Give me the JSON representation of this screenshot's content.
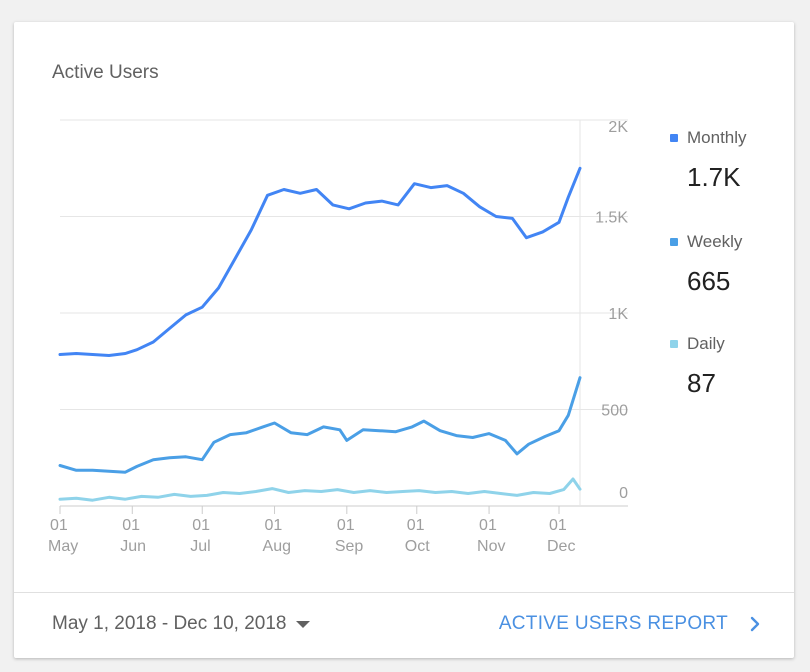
{
  "card": {
    "title": "Active Users",
    "date_range": "May 1, 2018 - Dec 10, 2018",
    "report_link": "ACTIVE USERS REPORT"
  },
  "legend": [
    {
      "label": "Monthly",
      "value": "1.7K",
      "color": "#4285f4"
    },
    {
      "label": "Weekly",
      "value": "665",
      "color": "#4a9fe6"
    },
    {
      "label": "Daily",
      "value": "87",
      "color": "#8fd3ea"
    }
  ],
  "icons": {
    "dropdown": "caret-down-icon",
    "chevron": "chevron-right-icon"
  },
  "chart_data": {
    "type": "line",
    "ylim": [
      0,
      2000
    ],
    "yticks": [
      0,
      500,
      1000,
      1500,
      2000
    ],
    "ytick_labels": [
      "0",
      "500",
      "1K",
      "1.5K",
      "2K"
    ],
    "xlim": [
      "2018-05-01",
      "2018-12-10"
    ],
    "xticks": [
      {
        "date": "2018-05-01",
        "day": "01",
        "month": "May"
      },
      {
        "date": "2018-06-01",
        "day": "01",
        "month": "Jun"
      },
      {
        "date": "2018-07-01",
        "day": "01",
        "month": "Jul"
      },
      {
        "date": "2018-08-01",
        "day": "01",
        "month": "Aug"
      },
      {
        "date": "2018-09-01",
        "day": "01",
        "month": "Sep"
      },
      {
        "date": "2018-10-01",
        "day": "01",
        "month": "Oct"
      },
      {
        "date": "2018-11-01",
        "day": "01",
        "month": "Nov"
      },
      {
        "date": "2018-12-01",
        "day": "01",
        "month": "Dec"
      }
    ],
    "series": [
      {
        "name": "Monthly",
        "color": "#4285f4",
        "points": [
          [
            "2018-05-01",
            785
          ],
          [
            "2018-05-08",
            790
          ],
          [
            "2018-05-15",
            785
          ],
          [
            "2018-05-22",
            780
          ],
          [
            "2018-05-29",
            790
          ],
          [
            "2018-06-03",
            810
          ],
          [
            "2018-06-10",
            850
          ],
          [
            "2018-06-17",
            920
          ],
          [
            "2018-06-24",
            990
          ],
          [
            "2018-07-01",
            1030
          ],
          [
            "2018-07-08",
            1130
          ],
          [
            "2018-07-15",
            1280
          ],
          [
            "2018-07-22",
            1430
          ],
          [
            "2018-07-29",
            1610
          ],
          [
            "2018-08-05",
            1640
          ],
          [
            "2018-08-12",
            1620
          ],
          [
            "2018-08-19",
            1640
          ],
          [
            "2018-08-26",
            1560
          ],
          [
            "2018-09-02",
            1540
          ],
          [
            "2018-09-09",
            1570
          ],
          [
            "2018-09-16",
            1580
          ],
          [
            "2018-09-23",
            1560
          ],
          [
            "2018-09-30",
            1670
          ],
          [
            "2018-10-07",
            1650
          ],
          [
            "2018-10-14",
            1660
          ],
          [
            "2018-10-21",
            1620
          ],
          [
            "2018-10-28",
            1550
          ],
          [
            "2018-11-04",
            1500
          ],
          [
            "2018-11-11",
            1490
          ],
          [
            "2018-11-17",
            1390
          ],
          [
            "2018-11-24",
            1420
          ],
          [
            "2018-12-01",
            1470
          ],
          [
            "2018-12-05",
            1600
          ],
          [
            "2018-12-10",
            1750
          ]
        ]
      },
      {
        "name": "Weekly",
        "color": "#4a9fe6",
        "points": [
          [
            "2018-05-01",
            210
          ],
          [
            "2018-05-08",
            185
          ],
          [
            "2018-05-15",
            185
          ],
          [
            "2018-05-22",
            180
          ],
          [
            "2018-05-29",
            175
          ],
          [
            "2018-06-03",
            205
          ],
          [
            "2018-06-10",
            240
          ],
          [
            "2018-06-17",
            250
          ],
          [
            "2018-06-24",
            255
          ],
          [
            "2018-07-01",
            240
          ],
          [
            "2018-07-06",
            330
          ],
          [
            "2018-07-13",
            370
          ],
          [
            "2018-07-20",
            380
          ],
          [
            "2018-07-27",
            410
          ],
          [
            "2018-08-01",
            430
          ],
          [
            "2018-08-08",
            380
          ],
          [
            "2018-08-15",
            370
          ],
          [
            "2018-08-22",
            410
          ],
          [
            "2018-08-29",
            395
          ],
          [
            "2018-09-01",
            340
          ],
          [
            "2018-09-08",
            395
          ],
          [
            "2018-09-15",
            390
          ],
          [
            "2018-09-22",
            385
          ],
          [
            "2018-09-29",
            410
          ],
          [
            "2018-10-04",
            440
          ],
          [
            "2018-10-11",
            390
          ],
          [
            "2018-10-18",
            365
          ],
          [
            "2018-10-25",
            355
          ],
          [
            "2018-11-01",
            375
          ],
          [
            "2018-11-08",
            340
          ],
          [
            "2018-11-13",
            270
          ],
          [
            "2018-11-18",
            320
          ],
          [
            "2018-11-25",
            360
          ],
          [
            "2018-12-01",
            390
          ],
          [
            "2018-12-05",
            470
          ],
          [
            "2018-12-10",
            665
          ]
        ]
      },
      {
        "name": "Daily",
        "color": "#8fd3ea",
        "points": [
          [
            "2018-05-01",
            35
          ],
          [
            "2018-05-08",
            40
          ],
          [
            "2018-05-15",
            30
          ],
          [
            "2018-05-22",
            45
          ],
          [
            "2018-05-29",
            35
          ],
          [
            "2018-06-05",
            50
          ],
          [
            "2018-06-12",
            45
          ],
          [
            "2018-06-19",
            60
          ],
          [
            "2018-06-26",
            50
          ],
          [
            "2018-07-03",
            55
          ],
          [
            "2018-07-10",
            70
          ],
          [
            "2018-07-17",
            65
          ],
          [
            "2018-07-24",
            75
          ],
          [
            "2018-07-31",
            90
          ],
          [
            "2018-08-07",
            70
          ],
          [
            "2018-08-14",
            80
          ],
          [
            "2018-08-21",
            75
          ],
          [
            "2018-08-28",
            85
          ],
          [
            "2018-09-04",
            70
          ],
          [
            "2018-09-11",
            80
          ],
          [
            "2018-09-18",
            70
          ],
          [
            "2018-09-25",
            75
          ],
          [
            "2018-10-02",
            80
          ],
          [
            "2018-10-09",
            70
          ],
          [
            "2018-10-16",
            75
          ],
          [
            "2018-10-23",
            65
          ],
          [
            "2018-10-30",
            75
          ],
          [
            "2018-11-06",
            65
          ],
          [
            "2018-11-13",
            55
          ],
          [
            "2018-11-20",
            70
          ],
          [
            "2018-11-27",
            65
          ],
          [
            "2018-12-03",
            85
          ],
          [
            "2018-12-07",
            140
          ],
          [
            "2018-12-10",
            87
          ]
        ]
      }
    ]
  }
}
